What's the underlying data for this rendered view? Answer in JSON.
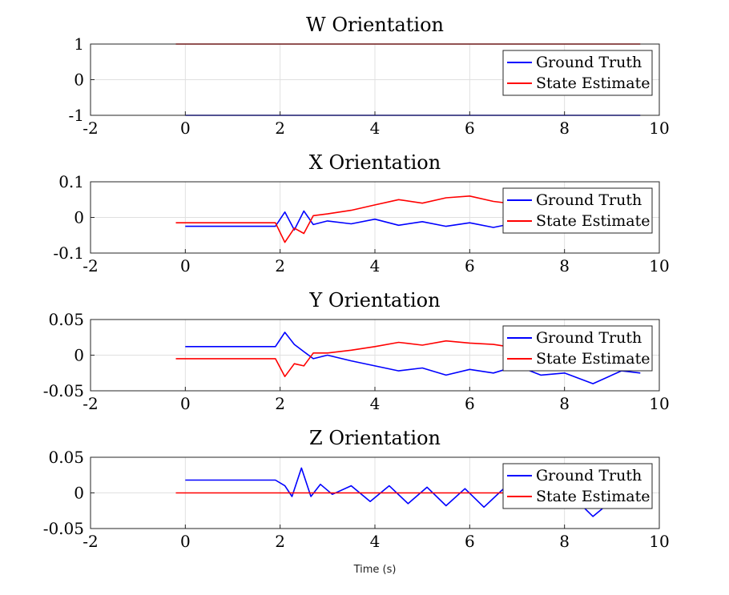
{
  "figure": {
    "xlabel": "Time (s)"
  },
  "chart_data": [
    {
      "type": "line",
      "title": "W Orientation",
      "xlim": [
        -2,
        10
      ],
      "ylim": [
        -1,
        1
      ],
      "xticks": [
        "-2",
        "0",
        "2",
        "4",
        "6",
        "8",
        "10"
      ],
      "yticks": [
        "1",
        "0",
        "-1"
      ],
      "ytick_values": [
        1,
        0,
        -1
      ],
      "grid": true,
      "legend_placement": "top-right",
      "series": [
        {
          "name": "Ground Truth",
          "color": "#0000ff",
          "x": [
            0,
            1,
            2,
            3,
            4,
            5,
            6,
            7,
            8,
            9,
            9.6
          ],
          "y": [
            -1,
            -1,
            -1,
            -1,
            -1,
            -1,
            -1,
            -1,
            -1,
            -1,
            -1
          ]
        },
        {
          "name": "State Estimate",
          "color": "#ff0000",
          "x": [
            -0.2,
            1,
            2,
            3,
            4,
            5,
            6,
            7,
            8,
            9,
            9.6
          ],
          "y": [
            1,
            1,
            1,
            1,
            1,
            1,
            1,
            1,
            1,
            1,
            1
          ]
        }
      ]
    },
    {
      "type": "line",
      "title": "X Orientation",
      "xlim": [
        -2,
        10
      ],
      "ylim": [
        -0.1,
        0.1
      ],
      "xticks": [
        "-2",
        "0",
        "2",
        "4",
        "6",
        "8",
        "10"
      ],
      "yticks": [
        "0.1",
        "0",
        "-0.1"
      ],
      "ytick_values": [
        0.1,
        0,
        -0.1
      ],
      "grid": true,
      "legend_placement": "top-right",
      "series": [
        {
          "name": "Ground Truth",
          "color": "#0000ff",
          "x": [
            0,
            1.9,
            2.1,
            2.3,
            2.5,
            2.7,
            3.0,
            3.5,
            4.0,
            4.5,
            5.0,
            5.5,
            6.0,
            6.5,
            6.8
          ],
          "y": [
            -0.025,
            -0.025,
            0.015,
            -0.035,
            0.018,
            -0.02,
            -0.01,
            -0.018,
            -0.005,
            -0.022,
            -0.012,
            -0.025,
            -0.015,
            -0.028,
            -0.02
          ]
        },
        {
          "name": "State Estimate",
          "color": "#ff0000",
          "x": [
            -0.2,
            1.9,
            2.1,
            2.3,
            2.5,
            2.7,
            3.0,
            3.5,
            4.0,
            4.5,
            5.0,
            5.5,
            6.0,
            6.5,
            6.8
          ],
          "y": [
            -0.015,
            -0.015,
            -0.07,
            -0.03,
            -0.045,
            0.005,
            0.01,
            0.02,
            0.035,
            0.05,
            0.04,
            0.055,
            0.06,
            0.045,
            0.04
          ]
        }
      ]
    },
    {
      "type": "line",
      "title": "Y Orientation",
      "xlim": [
        -2,
        10
      ],
      "ylim": [
        -0.05,
        0.05
      ],
      "xticks": [
        "-2",
        "0",
        "2",
        "4",
        "6",
        "8",
        "10"
      ],
      "yticks": [
        "0.05",
        "0",
        "-0.05"
      ],
      "ytick_values": [
        0.05,
        0,
        -0.05
      ],
      "grid": true,
      "legend_placement": "top-right",
      "series": [
        {
          "name": "Ground Truth",
          "color": "#0000ff",
          "x": [
            0,
            1.9,
            2.1,
            2.3,
            2.5,
            2.7,
            3.0,
            3.5,
            4.0,
            4.5,
            5.0,
            5.5,
            6.0,
            6.5,
            7.0,
            7.5,
            8.0,
            8.6,
            9.2,
            9.6
          ],
          "y": [
            0.012,
            0.012,
            0.032,
            0.015,
            0.005,
            -0.005,
            0.0,
            -0.008,
            -0.015,
            -0.022,
            -0.018,
            -0.028,
            -0.02,
            -0.025,
            -0.015,
            -0.028,
            -0.025,
            -0.04,
            -0.022,
            -0.025
          ]
        },
        {
          "name": "State Estimate",
          "color": "#ff0000",
          "x": [
            -0.2,
            1.9,
            2.1,
            2.3,
            2.5,
            2.7,
            3.0,
            3.5,
            4.0,
            4.5,
            5.0,
            5.5,
            6.0,
            6.5,
            6.8
          ],
          "y": [
            -0.005,
            -0.005,
            -0.03,
            -0.012,
            -0.015,
            0.003,
            0.003,
            0.007,
            0.012,
            0.018,
            0.014,
            0.02,
            0.017,
            0.015,
            0.012
          ]
        }
      ]
    },
    {
      "type": "line",
      "title": "Z Orientation",
      "xlim": [
        -2,
        10
      ],
      "ylim": [
        -0.05,
        0.05
      ],
      "xticks": [
        "-2",
        "0",
        "2",
        "4",
        "6",
        "8",
        "10"
      ],
      "yticks": [
        "0.05",
        "0",
        "-0.05"
      ],
      "ytick_values": [
        0.05,
        0,
        -0.05
      ],
      "grid": true,
      "legend_placement": "top-right",
      "series": [
        {
          "name": "Ground Truth",
          "color": "#0000ff",
          "x": [
            0,
            1.9,
            2.1,
            2.25,
            2.45,
            2.65,
            2.85,
            3.1,
            3.5,
            3.9,
            4.3,
            4.7,
            5.1,
            5.5,
            5.9,
            6.3,
            6.7,
            8.4,
            8.6,
            8.8
          ],
          "y": [
            0.018,
            0.018,
            0.01,
            -0.005,
            0.035,
            -0.005,
            0.012,
            -0.002,
            0.01,
            -0.012,
            0.01,
            -0.015,
            0.008,
            -0.018,
            0.006,
            -0.02,
            0.005,
            -0.02,
            -0.033,
            -0.022
          ]
        },
        {
          "name": "State Estimate",
          "color": "#ff0000",
          "x": [
            -0.2,
            2,
            4,
            6,
            6.8
          ],
          "y": [
            0.0,
            0.0,
            0.0,
            0.0,
            0.0
          ]
        }
      ]
    }
  ]
}
